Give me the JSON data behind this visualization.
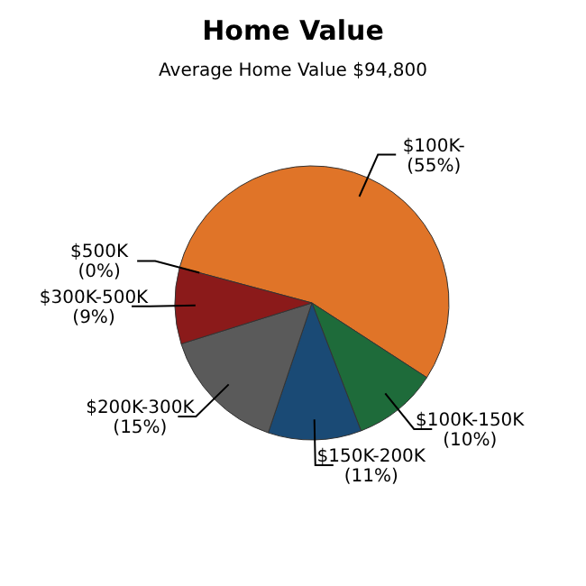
{
  "chart_data": {
    "type": "pie",
    "title": "Home Value",
    "subtitle": "Average Home Value  $94,800",
    "categories": [
      "$100K-",
      "$100K-150K",
      "$150K-200K",
      "$200K-300K",
      "$300K-500K",
      "$500K"
    ],
    "values": [
      55,
      10,
      11,
      15,
      9,
      0
    ],
    "colors": [
      "#e07428",
      "#1e6b3a",
      "#1a4a75",
      "#5a5a5a",
      "#8b1a1a",
      "#d4b020"
    ],
    "value_labels": [
      "(55%)",
      "(10%)",
      "(11%)",
      "(15%)",
      "(9%)",
      "(0%)"
    ]
  }
}
